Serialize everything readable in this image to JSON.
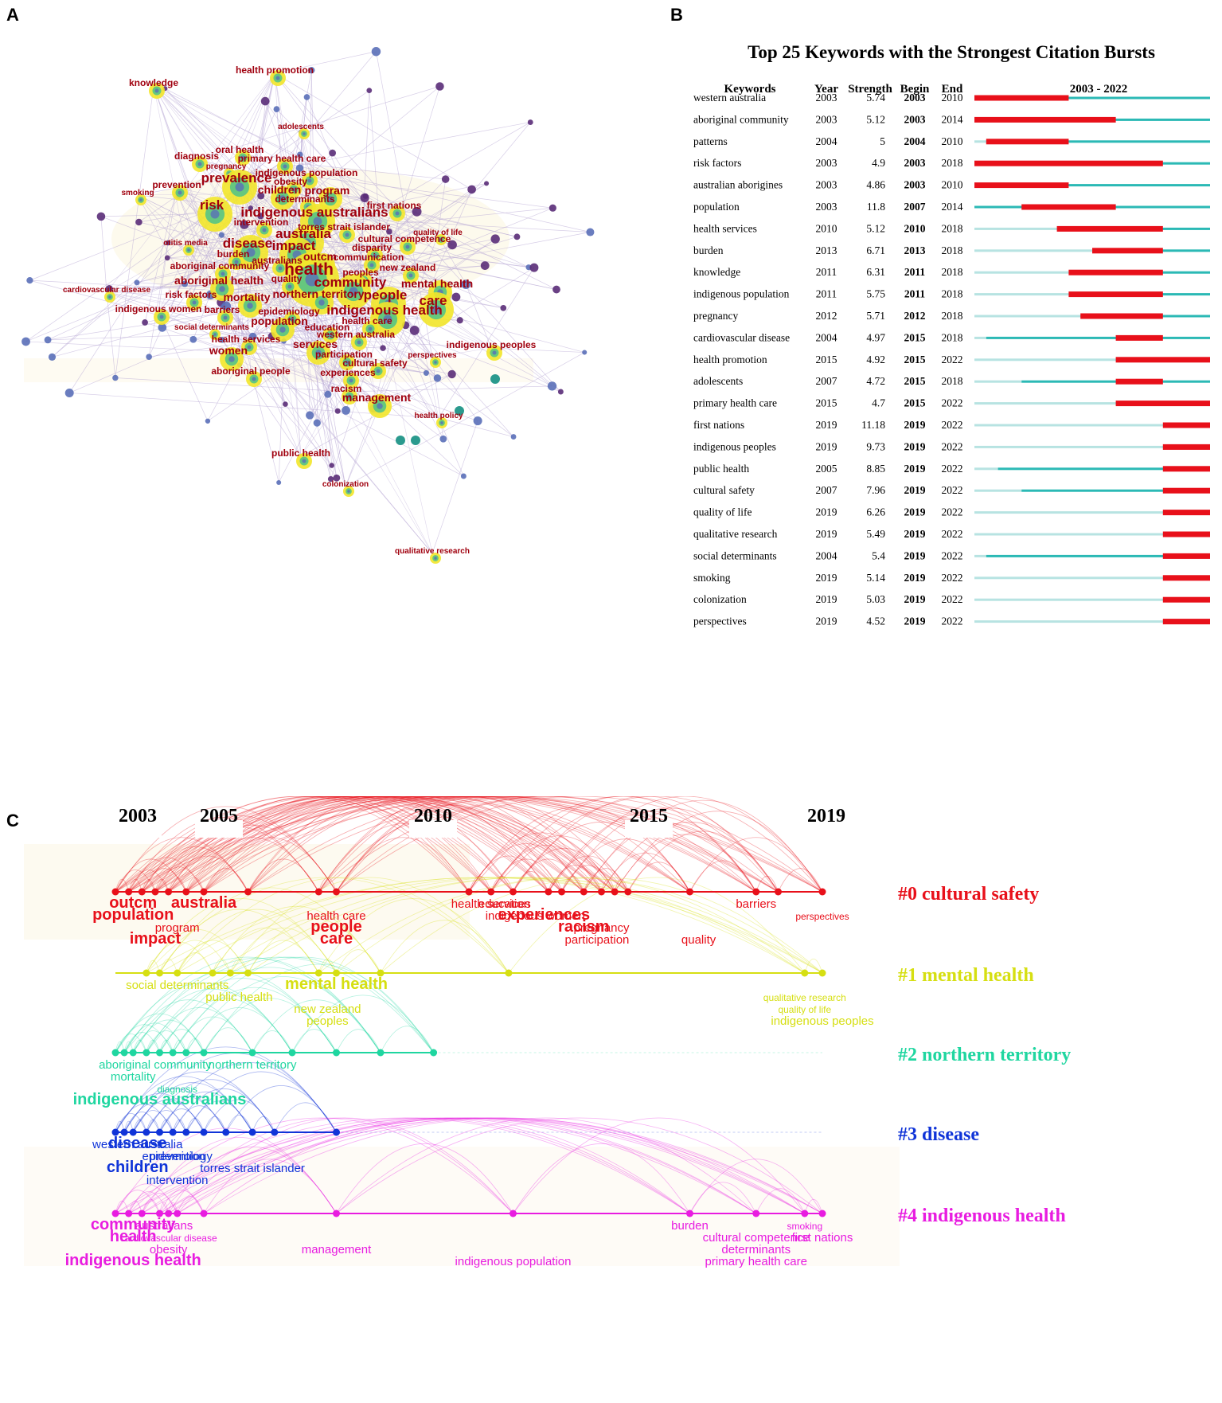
{
  "panels": {
    "a": "A",
    "b": "B",
    "c": "C"
  },
  "colors": {
    "burst": "#e8101a",
    "active": "#2bb9b5",
    "inactive": "#b7e3e2",
    "network_label": "#a0000e",
    "node_yellow": "#f2e62a",
    "node_green": "#4cc28a",
    "node_teal": "#2b9a8e",
    "node_blue": "#5a6fb8",
    "node_purple": "#5a2c78",
    "edge": "#b7a7d4"
  },
  "network": {
    "labels": [
      {
        "text": "health promotion",
        "size": "s"
      },
      {
        "text": "knowledge",
        "size": "s"
      },
      {
        "text": "adolescents",
        "size": "xs"
      },
      {
        "text": "oral health",
        "size": "s"
      },
      {
        "text": "diagnosis",
        "size": "s"
      },
      {
        "text": "pregnancy",
        "size": "xs"
      },
      {
        "text": "primary health care",
        "size": "s"
      },
      {
        "text": "indigenous population",
        "size": "s"
      },
      {
        "text": "obesity",
        "size": "s"
      },
      {
        "text": "prevention",
        "size": "s"
      },
      {
        "text": "prevalence",
        "size": "l"
      },
      {
        "text": "smoking",
        "size": "xs"
      },
      {
        "text": "children",
        "size": "m"
      },
      {
        "text": "program",
        "size": "m"
      },
      {
        "text": "determinants",
        "size": "s"
      },
      {
        "text": "first nations",
        "size": "s"
      },
      {
        "text": "risk",
        "size": "l"
      },
      {
        "text": "indigenous australians",
        "size": "l"
      },
      {
        "text": "intervention",
        "size": "s"
      },
      {
        "text": "torres strait islander",
        "size": "s"
      },
      {
        "text": "australia",
        "size": "l"
      },
      {
        "text": "quality of life",
        "size": "xs"
      },
      {
        "text": "cultural competence",
        "size": "s"
      },
      {
        "text": "otitis media",
        "size": "xs"
      },
      {
        "text": "disease",
        "size": "l"
      },
      {
        "text": "impact",
        "size": "l"
      },
      {
        "text": "disparity",
        "size": "s"
      },
      {
        "text": "burden",
        "size": "s"
      },
      {
        "text": "outcm",
        "size": "m"
      },
      {
        "text": "communication",
        "size": "s"
      },
      {
        "text": "australians",
        "size": "s"
      },
      {
        "text": "aboriginal community",
        "size": "s"
      },
      {
        "text": "health",
        "size": "xl"
      },
      {
        "text": "new zealand",
        "size": "s"
      },
      {
        "text": "peoples",
        "size": "s"
      },
      {
        "text": "aboriginal health",
        "size": "m"
      },
      {
        "text": "quality",
        "size": "s"
      },
      {
        "text": "community",
        "size": "l"
      },
      {
        "text": "mental health",
        "size": "m"
      },
      {
        "text": "cardiovascular disease",
        "size": "xs"
      },
      {
        "text": "risk factors",
        "size": "s"
      },
      {
        "text": "mortality",
        "size": "m"
      },
      {
        "text": "northern territory",
        "size": "m"
      },
      {
        "text": "people",
        "size": "l"
      },
      {
        "text": "care",
        "size": "l"
      },
      {
        "text": "indigenous women",
        "size": "s"
      },
      {
        "text": "barriers",
        "size": "s"
      },
      {
        "text": "epidemiology",
        "size": "s"
      },
      {
        "text": "indigenous health",
        "size": "l"
      },
      {
        "text": "social determinants",
        "size": "xs"
      },
      {
        "text": "population",
        "size": "m"
      },
      {
        "text": "education",
        "size": "s"
      },
      {
        "text": "health care",
        "size": "s"
      },
      {
        "text": "western australia",
        "size": "s"
      },
      {
        "text": "health services",
        "size": "s"
      },
      {
        "text": "services",
        "size": "m"
      },
      {
        "text": "indigenous peoples",
        "size": "s"
      },
      {
        "text": "women",
        "size": "m"
      },
      {
        "text": "participation",
        "size": "s"
      },
      {
        "text": "perspectives",
        "size": "xs"
      },
      {
        "text": "cultural safety",
        "size": "s"
      },
      {
        "text": "aboriginal people",
        "size": "s"
      },
      {
        "text": "experiences",
        "size": "s"
      },
      {
        "text": "racism",
        "size": "s"
      },
      {
        "text": "management",
        "size": "m"
      },
      {
        "text": "health policy",
        "size": "xs"
      },
      {
        "text": "public health",
        "size": "s"
      },
      {
        "text": "colonization",
        "size": "xs"
      },
      {
        "text": "qualitative research",
        "size": "xs"
      }
    ]
  },
  "bursts": {
    "title": "Top 25 Keywords with the Strongest Citation Bursts",
    "headers": {
      "keywords": "Keywords",
      "year": "Year",
      "strength": "Strength",
      "begin": "Begin",
      "end": "End",
      "range": "2003 - 2022"
    },
    "range_start": 2003,
    "range_end": 2022
  },
  "chart_data": [
    {
      "type": "table",
      "title": "Top 25 Keywords with the Strongest Citation Bursts",
      "columns": [
        "Keywords",
        "Year",
        "Strength",
        "Begin",
        "End",
        "2003 - 2022"
      ],
      "rows": [
        {
          "keyword": "western australia",
          "year": 2003,
          "strength": "5.74",
          "begin": 2003,
          "end": 2010
        },
        {
          "keyword": "aboriginal community",
          "year": 2003,
          "strength": "5.12",
          "begin": 2003,
          "end": 2014
        },
        {
          "keyword": "patterns",
          "year": 2004,
          "strength": "5",
          "begin": 2004,
          "end": 2010
        },
        {
          "keyword": "risk factors",
          "year": 2003,
          "strength": "4.9",
          "begin": 2003,
          "end": 2018
        },
        {
          "keyword": "australian aborigines",
          "year": 2003,
          "strength": "4.86",
          "begin": 2003,
          "end": 2010
        },
        {
          "keyword": "population",
          "year": 2003,
          "strength": "11.8",
          "begin": 2007,
          "end": 2014
        },
        {
          "keyword": "health services",
          "year": 2010,
          "strength": "5.12",
          "begin": 2010,
          "end": 2018
        },
        {
          "keyword": "burden",
          "year": 2013,
          "strength": "6.71",
          "begin": 2013,
          "end": 2018
        },
        {
          "keyword": "knowledge",
          "year": 2011,
          "strength": "6.31",
          "begin": 2011,
          "end": 2018
        },
        {
          "keyword": "indigenous population",
          "year": 2011,
          "strength": "5.75",
          "begin": 2011,
          "end": 2018
        },
        {
          "keyword": "pregnancy",
          "year": 2012,
          "strength": "5.71",
          "begin": 2012,
          "end": 2018
        },
        {
          "keyword": "cardiovascular disease",
          "year": 2004,
          "strength": "4.97",
          "begin": 2015,
          "end": 2018
        },
        {
          "keyword": "health promotion",
          "year": 2015,
          "strength": "4.92",
          "begin": 2015,
          "end": 2022
        },
        {
          "keyword": "adolescents",
          "year": 2007,
          "strength": "4.72",
          "begin": 2015,
          "end": 2018
        },
        {
          "keyword": "primary health care",
          "year": 2015,
          "strength": "4.7",
          "begin": 2015,
          "end": 2022
        },
        {
          "keyword": "first nations",
          "year": 2019,
          "strength": "11.18",
          "begin": 2019,
          "end": 2022
        },
        {
          "keyword": "indigenous peoples",
          "year": 2019,
          "strength": "9.73",
          "begin": 2019,
          "end": 2022
        },
        {
          "keyword": "public health",
          "year": 2005,
          "strength": "8.85",
          "begin": 2019,
          "end": 2022
        },
        {
          "keyword": "cultural safety",
          "year": 2007,
          "strength": "7.96",
          "begin": 2019,
          "end": 2022
        },
        {
          "keyword": "quality of life",
          "year": 2019,
          "strength": "6.26",
          "begin": 2019,
          "end": 2022
        },
        {
          "keyword": "qualitative research",
          "year": 2019,
          "strength": "5.49",
          "begin": 2019,
          "end": 2022
        },
        {
          "keyword": "social determinants",
          "year": 2004,
          "strength": "5.4",
          "begin": 2019,
          "end": 2022
        },
        {
          "keyword": "smoking",
          "year": 2019,
          "strength": "5.14",
          "begin": 2019,
          "end": 2022
        },
        {
          "keyword": "colonization",
          "year": 2019,
          "strength": "5.03",
          "begin": 2019,
          "end": 2022
        },
        {
          "keyword": "perspectives",
          "year": 2019,
          "strength": "4.52",
          "begin": 2019,
          "end": 2022
        }
      ]
    },
    {
      "type": "scatter",
      "title": "Keyword timeline by cluster",
      "x_ticks": [
        2003,
        2005,
        2010,
        2015,
        2019
      ],
      "x_range": [
        2003,
        2019
      ],
      "series": [
        {
          "name": "#0 cultural safety",
          "color": "#e8101a",
          "years": [
            2003,
            2003.3,
            2003.6,
            2003.9,
            2004.2,
            2004.6,
            2005,
            2006,
            2007.6,
            2008,
            2011,
            2011.5,
            2012,
            2012.8,
            2013.1,
            2013.6,
            2014,
            2014.3,
            2014.6,
            2016,
            2017.5,
            2018,
            2019
          ],
          "labels": [
            {
              "text": "outcm",
              "year": 2003.4,
              "size": "l"
            },
            {
              "text": "population",
              "year": 2003.4,
              "size": "l"
            },
            {
              "text": "program",
              "year": 2004.4,
              "size": "m"
            },
            {
              "text": "impact",
              "year": 2003.9,
              "size": "l"
            },
            {
              "text": "australia",
              "year": 2005,
              "size": "l"
            },
            {
              "text": "health care",
              "year": 2008,
              "size": "m"
            },
            {
              "text": "people",
              "year": 2008,
              "size": "l"
            },
            {
              "text": "care",
              "year": 2008,
              "size": "l"
            },
            {
              "text": "health services",
              "year": 2011.5,
              "size": "m"
            },
            {
              "text": "indigenous women",
              "year": 2012.5,
              "size": "m"
            },
            {
              "text": "pregnancy",
              "year": 2014,
              "size": "m"
            },
            {
              "text": "participation",
              "year": 2013.9,
              "size": "m"
            },
            {
              "text": "education",
              "year": 2011.8,
              "size": "m"
            },
            {
              "text": "experiences",
              "year": 2012.7,
              "size": "l"
            },
            {
              "text": "racism",
              "year": 2013.6,
              "size": "l"
            },
            {
              "text": "quality",
              "year": 2016.2,
              "size": "m"
            },
            {
              "text": "barriers",
              "year": 2017.5,
              "size": "m"
            },
            {
              "text": "perspectives",
              "year": 2019,
              "size": "s"
            }
          ]
        },
        {
          "name": "#1 mental health",
          "color": "#d6df12",
          "years": [
            2003.7,
            2004,
            2004.4,
            2005.2,
            2005.6,
            2006,
            2007.6,
            2008,
            2009,
            2011.9,
            2018.6,
            2019
          ],
          "labels": [
            {
              "text": "social determinants",
              "year": 2004.4,
              "size": "m"
            },
            {
              "text": "public health",
              "year": 2005.8,
              "size": "m"
            },
            {
              "text": "new zealand",
              "year": 2007.8,
              "size": "m"
            },
            {
              "text": "peoples",
              "year": 2007.8,
              "size": "m"
            },
            {
              "text": "mental health",
              "year": 2008,
              "size": "l"
            },
            {
              "text": "qualitative research",
              "year": 2018.6,
              "size": "s"
            },
            {
              "text": "quality of life",
              "year": 2018.6,
              "size": "s"
            },
            {
              "text": "indigenous peoples",
              "year": 2019,
              "size": "m"
            }
          ]
        },
        {
          "name": "#2 northern territory",
          "color": "#1fd6a0",
          "years": [
            2003,
            2003.2,
            2003.4,
            2003.7,
            2004,
            2004.3,
            2004.6,
            2005,
            2006.1,
            2007,
            2008,
            2009,
            2010.2
          ],
          "labels": [
            {
              "text": "aboriginal community",
              "year": 2003.9,
              "size": "m"
            },
            {
              "text": "mortality",
              "year": 2003.4,
              "size": "m"
            },
            {
              "text": "diagnosis",
              "year": 2004.4,
              "size": "s"
            },
            {
              "text": "indigenous australians",
              "year": 2004,
              "size": "l"
            },
            {
              "text": "northern territory",
              "year": 2006.1,
              "size": "m"
            }
          ]
        },
        {
          "name": "#3 disease",
          "color": "#1034d8",
          "years": [
            2003,
            2003.2,
            2003.4,
            2003.7,
            2004,
            2004.3,
            2004.6,
            2005,
            2005.5,
            2006.1,
            2006.6,
            2008
          ],
          "labels": [
            {
              "text": "western australia",
              "year": 2003.5,
              "size": "m"
            },
            {
              "text": "epidemiology",
              "year": 2004.4,
              "size": "m"
            },
            {
              "text": "children",
              "year": 2003.5,
              "size": "l"
            },
            {
              "text": "intervention",
              "year": 2004.4,
              "size": "m"
            },
            {
              "text": "disease",
              "year": 2003.5,
              "size": "l"
            },
            {
              "text": "prevention",
              "year": 2004.4,
              "size": "m"
            },
            {
              "text": "torres strait islander",
              "year": 2006.1,
              "size": "m"
            }
          ]
        },
        {
          "name": "#4 indigenous health",
          "color": "#e81ce0",
          "years": [
            2003,
            2003.3,
            2003.6,
            2004,
            2004.2,
            2004.4,
            2005,
            2008,
            2012,
            2016,
            2017.5,
            2018.6,
            2019
          ],
          "labels": [
            {
              "text": "community",
              "year": 2003.4,
              "size": "l"
            },
            {
              "text": "cardiovascular disease",
              "year": 2004.2,
              "size": "s"
            },
            {
              "text": "obesity",
              "year": 2004.2,
              "size": "m"
            },
            {
              "text": "indigenous health",
              "year": 2003.4,
              "size": "l"
            },
            {
              "text": "australians",
              "year": 2004.1,
              "size": "m"
            },
            {
              "text": "health",
              "year": 2003.4,
              "size": "l"
            },
            {
              "text": "management",
              "year": 2008,
              "size": "m"
            },
            {
              "text": "indigenous population",
              "year": 2012,
              "size": "m"
            },
            {
              "text": "burden",
              "year": 2016,
              "size": "m"
            },
            {
              "text": "cultural competence",
              "year": 2017.5,
              "size": "m"
            },
            {
              "text": "determinants",
              "year": 2017.5,
              "size": "m"
            },
            {
              "text": "primary health care",
              "year": 2017.5,
              "size": "m"
            },
            {
              "text": "smoking",
              "year": 2018.6,
              "size": "s"
            },
            {
              "text": "first nations",
              "year": 2019,
              "size": "m"
            }
          ]
        }
      ]
    }
  ]
}
